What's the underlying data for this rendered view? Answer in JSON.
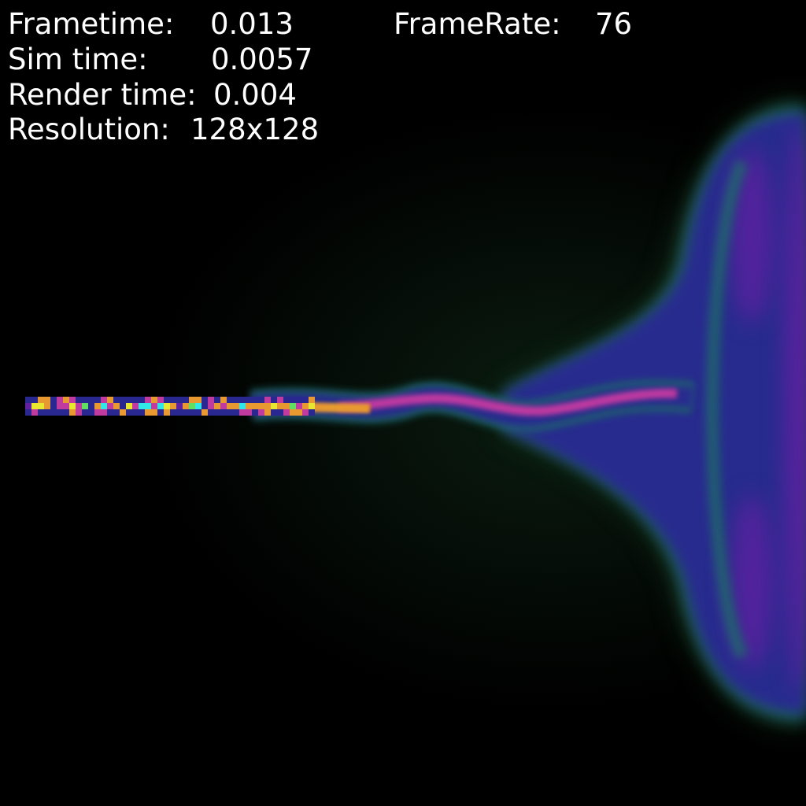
{
  "hud": {
    "frametime_label": "Frametime:",
    "frametime_value": "0.013",
    "framerate_label": "FrameRate:",
    "framerate_value": "76",
    "simtime_label": "Sim time:",
    "simtime_value": "0.0057",
    "rendertime_label": "Render time:",
    "rendertime_value": "0.004",
    "resolution_label": "Resolution:",
    "resolution_value": "128x128"
  },
  "simulation": {
    "grid_resolution": [
      128,
      128
    ],
    "background_color": "#000000",
    "colors": {
      "jet_hot": "#e89a30",
      "jet_magenta": "#c03aa0",
      "plume_purple": "#6020a0",
      "plume_blue": "#282890",
      "edge_teal": "#1f6a6a",
      "edge_green": "#1c4a2a",
      "accent_cyan": "#30e8e8",
      "accent_yellow": "#e8e830",
      "accent_green": "#60e060"
    }
  }
}
